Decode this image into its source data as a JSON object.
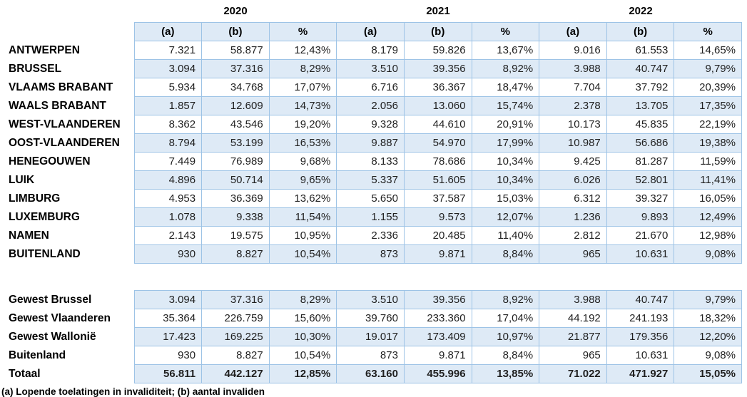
{
  "colors": {
    "shaded_row": "#DEEAF6",
    "border": "#9DC3E6"
  },
  "table": {
    "year_headers": [
      "2020",
      "2021",
      "2022"
    ],
    "column_headers": [
      "(a)",
      "(b)",
      "%"
    ],
    "footnote": "(a) Lopende toelatingen in invaliditeit; (b) aantal invaliden",
    "sections": [
      {
        "name": "provinces",
        "rows": [
          {
            "label": "ANTWERPEN",
            "values": [
              "7.321",
              "58.877",
              "12,43%",
              "8.179",
              "59.826",
              "13,67%",
              "9.016",
              "61.553",
              "14,65%"
            ]
          },
          {
            "label": "BRUSSEL",
            "values": [
              "3.094",
              "37.316",
              "8,29%",
              "3.510",
              "39.356",
              "8,92%",
              "3.988",
              "40.747",
              "9,79%"
            ]
          },
          {
            "label": "VLAAMS BRABANT",
            "values": [
              "5.934",
              "34.768",
              "17,07%",
              "6.716",
              "36.367",
              "18,47%",
              "7.704",
              "37.792",
              "20,39%"
            ]
          },
          {
            "label": "WAALS BRABANT",
            "values": [
              "1.857",
              "12.609",
              "14,73%",
              "2.056",
              "13.060",
              "15,74%",
              "2.378",
              "13.705",
              "17,35%"
            ]
          },
          {
            "label": "WEST-VLAANDEREN",
            "values": [
              "8.362",
              "43.546",
              "19,20%",
              "9.328",
              "44.610",
              "20,91%",
              "10.173",
              "45.835",
              "22,19%"
            ]
          },
          {
            "label": "OOST-VLAANDEREN",
            "values": [
              "8.794",
              "53.199",
              "16,53%",
              "9.887",
              "54.970",
              "17,99%",
              "10.987",
              "56.686",
              "19,38%"
            ]
          },
          {
            "label": "HENEGOUWEN",
            "values": [
              "7.449",
              "76.989",
              "9,68%",
              "8.133",
              "78.686",
              "10,34%",
              "9.425",
              "81.287",
              "11,59%"
            ]
          },
          {
            "label": "LUIK",
            "values": [
              "4.896",
              "50.714",
              "9,65%",
              "5.337",
              "51.605",
              "10,34%",
              "6.026",
              "52.801",
              "11,41%"
            ]
          },
          {
            "label": "LIMBURG",
            "values": [
              "4.953",
              "36.369",
              "13,62%",
              "5.650",
              "37.587",
              "15,03%",
              "6.312",
              "39.327",
              "16,05%"
            ]
          },
          {
            "label": "LUXEMBURG",
            "values": [
              "1.078",
              "9.338",
              "11,54%",
              "1.155",
              "9.573",
              "12,07%",
              "1.236",
              "9.893",
              "12,49%"
            ]
          },
          {
            "label": "NAMEN",
            "values": [
              "2.143",
              "19.575",
              "10,95%",
              "2.336",
              "20.485",
              "11,40%",
              "2.812",
              "21.670",
              "12,98%"
            ]
          },
          {
            "label": "BUITENLAND",
            "values": [
              "930",
              "8.827",
              "10,54%",
              "873",
              "9.871",
              "8,84%",
              "965",
              "10.631",
              "9,08%"
            ]
          }
        ]
      },
      {
        "name": "regions",
        "rows": [
          {
            "label": "Gewest Brussel",
            "values": [
              "3.094",
              "37.316",
              "8,29%",
              "3.510",
              "39.356",
              "8,92%",
              "3.988",
              "40.747",
              "9,79%"
            ]
          },
          {
            "label": "Gewest Vlaanderen",
            "values": [
              "35.364",
              "226.759",
              "15,60%",
              "39.760",
              "233.360",
              "17,04%",
              "44.192",
              "241.193",
              "18,32%"
            ]
          },
          {
            "label": "Gewest Wallonië",
            "values": [
              "17.423",
              "169.225",
              "10,30%",
              "19.017",
              "173.409",
              "10,97%",
              "21.877",
              "179.356",
              "12,20%"
            ]
          },
          {
            "label": "Buitenland",
            "values": [
              "930",
              "8.827",
              "10,54%",
              "873",
              "9.871",
              "8,84%",
              "965",
              "10.631",
              "9,08%"
            ]
          },
          {
            "label": "Totaal",
            "bold": true,
            "values": [
              "56.811",
              "442.127",
              "12,85%",
              "63.160",
              "455.996",
              "13,85%",
              "71.022",
              "471.927",
              "15,05%"
            ]
          }
        ]
      }
    ]
  }
}
